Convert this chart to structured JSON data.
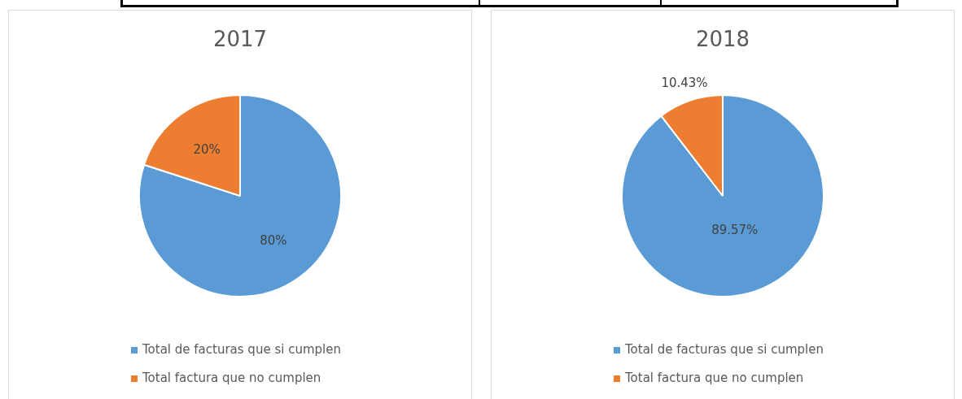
{
  "chart_data": [
    {
      "type": "pie",
      "title": "2017",
      "categories": [
        "Total de facturas que si cumplen",
        "Total factura que no cumplen"
      ],
      "values": [
        80,
        20
      ],
      "colors": [
        "#5b9bd5",
        "#ed7d31"
      ],
      "value_labels": [
        "80%",
        "20%"
      ],
      "legend": "bottom"
    },
    {
      "type": "pie",
      "title": "2018",
      "categories": [
        "Total de facturas que si cumplen",
        "Total factura que no cumplen"
      ],
      "values": [
        89.57,
        10.43
      ],
      "colors": [
        "#5b9bd5",
        "#ed7d31"
      ],
      "value_labels": [
        "89.57%",
        "10.43%"
      ],
      "legend": "bottom"
    }
  ]
}
